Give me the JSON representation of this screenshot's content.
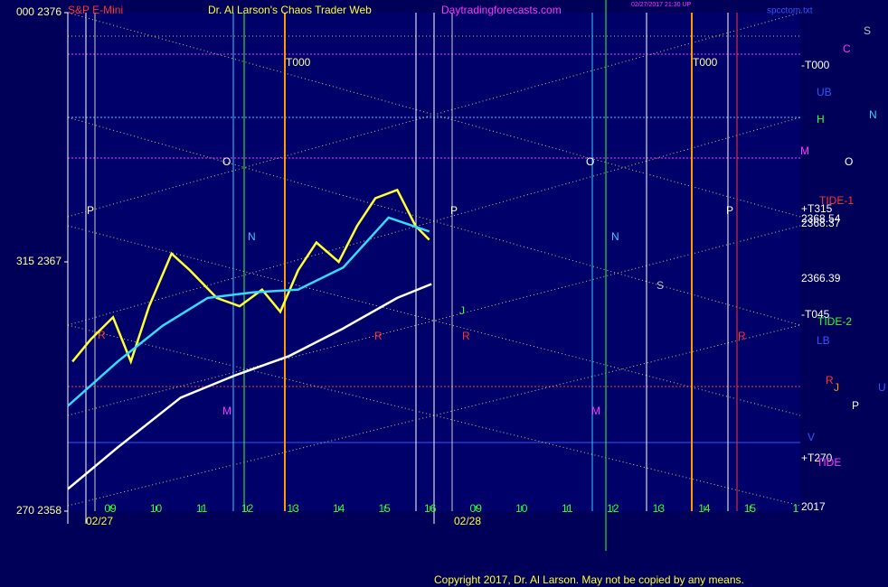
{
  "chart_data": {
    "type": "line",
    "title": "Dr. Al Larson's Chaos Trader Web",
    "subtitle": "S&P E-Mini",
    "site": "Daytradingforecasts.com",
    "timestamp": "02/27/2017 21:30 UP",
    "file": "spcctom.txt",
    "copyright": "Copyright 2017, Dr. Al Larson. May not be copied by any means.",
    "dates": [
      "02/27",
      "02/28"
    ],
    "xlim": [
      -0.93,
      15.1
    ],
    "xticks": [
      {
        "value": 0,
        "label": "09"
      },
      {
        "value": 1,
        "label": "10"
      },
      {
        "value": 2,
        "label": "11"
      },
      {
        "value": 3,
        "label": "12"
      },
      {
        "value": 4,
        "label": "13"
      },
      {
        "value": 5,
        "label": "14"
      },
      {
        "value": 6,
        "label": "15"
      },
      {
        "value": 7,
        "label": "16"
      },
      {
        "value": 8,
        "label": "09"
      },
      {
        "value": 9,
        "label": "10"
      },
      {
        "value": 10,
        "label": "11"
      },
      {
        "value": 11,
        "label": "12"
      },
      {
        "value": 12,
        "label": "13"
      },
      {
        "value": 13,
        "label": "14"
      },
      {
        "value": 14,
        "label": "15"
      },
      {
        "value": 15,
        "label": "1"
      }
    ],
    "ylim": [
      2358,
      2376
    ],
    "yticks": [
      {
        "value": 2376,
        "label": "000  2376"
      },
      {
        "value": 2367,
        "label": "315  2367"
      },
      {
        "value": 2358,
        "label": "270  2358"
      }
    ],
    "price_labels": [
      2368.54,
      2368.37,
      2366.39
    ],
    "right_labels": [
      "-T000",
      "+T315",
      "-T045",
      "+T270",
      "2017"
    ],
    "annotations": [
      {
        "text": "S",
        "color": "#c0c0c0"
      },
      {
        "text": "C",
        "color": "#ff33ff"
      },
      {
        "text": "UB",
        "color": "#3355ff"
      },
      {
        "text": "N",
        "color": "#33ccff"
      },
      {
        "text": "H",
        "color": "#33ff33"
      },
      {
        "text": "M",
        "color": "#ff33ff"
      },
      {
        "text": "O",
        "color": "#ffffff"
      },
      {
        "text": "TIDE-1",
        "color": "#ff3333"
      },
      {
        "text": "TIDE-2",
        "color": "#33ff33"
      },
      {
        "text": "LB",
        "color": "#3355ff"
      },
      {
        "text": "R",
        "color": "#ff3333"
      },
      {
        "text": "J",
        "color": "#ff9900"
      },
      {
        "text": "U",
        "color": "#3355ff"
      },
      {
        "text": "P",
        "color": "#ffffff"
      },
      {
        "text": "V",
        "color": "#3355ff"
      },
      {
        "text": "TIDE",
        "color": "#ff33ff"
      },
      {
        "text": "P",
        "color": "#ffffff"
      },
      {
        "text": "O",
        "color": "#ffffff"
      },
      {
        "text": "N",
        "color": "#33ccff"
      },
      {
        "text": "R",
        "color": "#ff3333"
      },
      {
        "text": "M",
        "color": "#ff33ff"
      },
      {
        "text": "R",
        "color": "#ff3333"
      },
      {
        "text": "P",
        "color": "#ffffff"
      },
      {
        "text": "O",
        "color": "#ffffff"
      },
      {
        "text": "N",
        "color": "#33ccff"
      },
      {
        "text": "J",
        "color": "#33ff33"
      },
      {
        "text": "R",
        "color": "#ff3333"
      },
      {
        "text": "M",
        "color": "#ff33ff"
      },
      {
        "text": "S",
        "color": "#c0c0c0"
      },
      {
        "text": "P",
        "color": "#ffffff"
      },
      {
        "text": "R",
        "color": "#ff3333"
      },
      {
        "text": "T000",
        "color": "#ffff99"
      },
      {
        "text": "T000",
        "color": "#ffff99"
      }
    ],
    "series": [
      {
        "color": "#ffff33",
        "x": [
          -0.83,
          -0.43,
          0.06,
          0.45,
          0.85,
          1.34,
          1.74,
          2.33,
          2.83,
          3.32,
          3.72,
          4.11,
          4.51,
          5.0,
          5.4,
          5.8,
          6.28,
          6.68,
          6.98
        ],
        "values": [
          2363.4,
          2364.2,
          2365.0,
          2363.4,
          2365.4,
          2367.3,
          2366.7,
          2365.7,
          2365.4,
          2366.0,
          2365.2,
          2366.7,
          2367.7,
          2367.0,
          2368.3,
          2369.3,
          2369.6,
          2368.3,
          2367.8
        ]
      },
      {
        "color": "#33ddff",
        "x": [
          -0.93,
          0.16,
          1.15,
          2.13,
          3.12,
          4.11,
          5.1,
          6.09,
          6.98
        ],
        "values": [
          2361.8,
          2363.4,
          2364.7,
          2365.7,
          2365.9,
          2366.0,
          2366.8,
          2368.6,
          2368.1
        ]
      },
      {
        "color": "#ffffff",
        "x": [
          -0.93,
          0.16,
          1.54,
          2.73,
          3.91,
          5.1,
          6.28,
          7.03
        ],
        "values": [
          2358.8,
          2360.3,
          2362.1,
          2362.9,
          2363.6,
          2364.6,
          2365.7,
          2366.2
        ]
      }
    ]
  }
}
